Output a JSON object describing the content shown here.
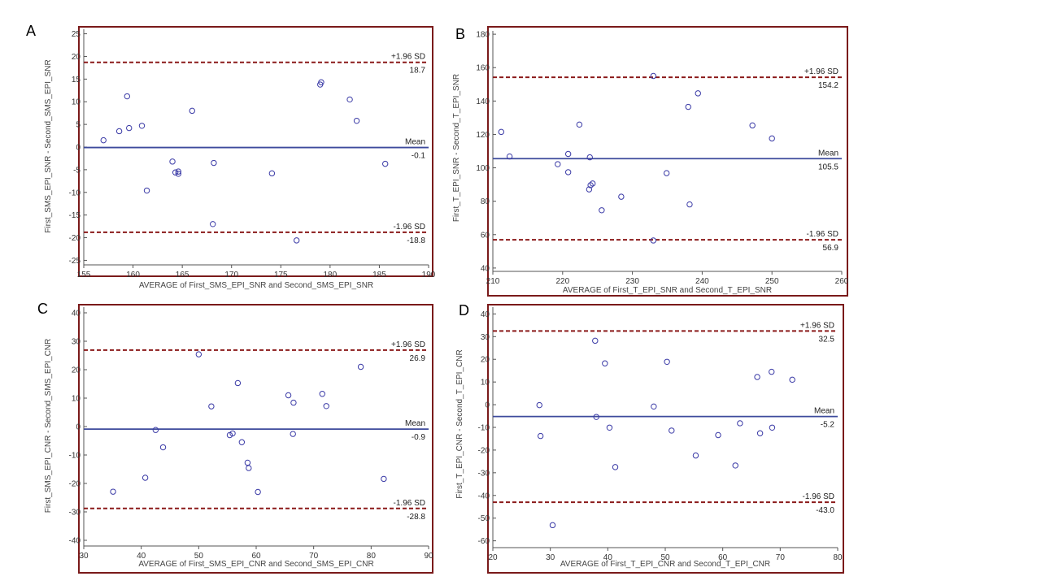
{
  "colors": {
    "frame": "#7a1a1a",
    "mean": "#3d4a9c",
    "limits": "#8b1a1a",
    "points": "#3a3aa6"
  },
  "chart_data": [
    {
      "type": "scatter",
      "panel": "A",
      "xlabel": "AVERAGE of First_SMS_EPI_SNR and Second_SMS_EPI_SNR",
      "ylabel": "First_SMS_EPI_SNR - Second_SMS_EPI_SNR",
      "xlim": [
        155,
        190
      ],
      "ylim": [
        -26,
        26
      ],
      "xticks": [
        155,
        160,
        165,
        170,
        175,
        180,
        185,
        190
      ],
      "yticks": [
        -25,
        -20,
        -15,
        -10,
        -5,
        0,
        5,
        10,
        15,
        20,
        25
      ],
      "lines": [
        {
          "kind": "upper",
          "label": "+1.96 SD",
          "value": 18.7,
          "value_label": "18.7"
        },
        {
          "kind": "mean",
          "label": "Mean",
          "value": -0.1,
          "value_label": "-0.1"
        },
        {
          "kind": "lower",
          "label": "-1.96 SD",
          "value": -18.8,
          "value_label": "-18.8"
        }
      ],
      "points": [
        [
          157,
          1.5
        ],
        [
          158.6,
          3.5
        ],
        [
          159.4,
          11.2
        ],
        [
          159.6,
          4.2
        ],
        [
          160.9,
          4.7
        ],
        [
          161.4,
          -9.6
        ],
        [
          164,
          -3.2
        ],
        [
          164.3,
          -5.6
        ],
        [
          164.6,
          -5.9
        ],
        [
          164.6,
          -5.4
        ],
        [
          166,
          8
        ],
        [
          168.1,
          -17
        ],
        [
          168.2,
          -3.5
        ],
        [
          174.1,
          -5.8
        ],
        [
          176.6,
          -20.6
        ],
        [
          179,
          13.8
        ],
        [
          179.1,
          14.3
        ],
        [
          182,
          10.5
        ],
        [
          182.7,
          5.8
        ],
        [
          185.6,
          -3.7
        ]
      ]
    },
    {
      "type": "scatter",
      "panel": "B",
      "xlabel": "AVERAGE of First_T_EPI_SNR and Second_T_EPI_SNR",
      "ylabel": "First_T_EPI_SNR - Second_T_EPI_SNR",
      "xlim": [
        210,
        260
      ],
      "ylim": [
        38,
        182
      ],
      "xticks": [
        210,
        220,
        230,
        240,
        250,
        260
      ],
      "yticks": [
        40,
        60,
        80,
        100,
        120,
        140,
        160,
        180
      ],
      "lines": [
        {
          "kind": "upper",
          "label": "+1.96 SD",
          "value": 154.2,
          "value_label": "154.2"
        },
        {
          "kind": "mean",
          "label": "Mean",
          "value": 105.5,
          "value_label": "105.5"
        },
        {
          "kind": "lower",
          "label": "-1.96 SD",
          "value": 56.9,
          "value_label": "56.9"
        }
      ],
      "points": [
        [
          211.2,
          121.5
        ],
        [
          212.4,
          106.8
        ],
        [
          219.3,
          102.2
        ],
        [
          220.8,
          108.3
        ],
        [
          220.8,
          97.4
        ],
        [
          222.4,
          125.9
        ],
        [
          223.8,
          87.1
        ],
        [
          223.9,
          106.3
        ],
        [
          224,
          89.6
        ],
        [
          224.3,
          90.6
        ],
        [
          225.6,
          74.6
        ],
        [
          228.4,
          82.7
        ],
        [
          233,
          155
        ],
        [
          233,
          56.5
        ],
        [
          234.9,
          96.8
        ],
        [
          238,
          136.5
        ],
        [
          238.2,
          78.1
        ],
        [
          239.4,
          144.6
        ],
        [
          247.2,
          125.4
        ],
        [
          250,
          117.6
        ]
      ]
    },
    {
      "type": "scatter",
      "panel": "C",
      "xlabel": "AVERAGE of First_SMS_EPI_CNR and Second_SMS_EPI_CNR",
      "ylabel": "First_SMS_EPI_CNR - Second_SMS_EPI_CNR",
      "xlim": [
        30,
        90
      ],
      "ylim": [
        -42,
        42
      ],
      "xticks": [
        30,
        40,
        50,
        60,
        70,
        80,
        90
      ],
      "yticks": [
        -40,
        -30,
        -20,
        -10,
        0,
        10,
        20,
        30,
        40
      ],
      "lines": [
        {
          "kind": "upper",
          "label": "+1.96 SD",
          "value": 26.9,
          "value_label": "26.9"
        },
        {
          "kind": "mean",
          "label": "Mean",
          "value": -0.9,
          "value_label": "-0.9"
        },
        {
          "kind": "lower",
          "label": "-1.96 SD",
          "value": -28.8,
          "value_label": "-28.8"
        }
      ],
      "points": [
        [
          35.1,
          -22.9
        ],
        [
          40.7,
          -18
        ],
        [
          42.5,
          -1.2
        ],
        [
          43.8,
          -7.3
        ],
        [
          50,
          25.4
        ],
        [
          52.2,
          7.1
        ],
        [
          55.4,
          -3
        ],
        [
          55.9,
          -2.4
        ],
        [
          56.8,
          15.3
        ],
        [
          57.5,
          -5.5
        ],
        [
          58.5,
          -12.7
        ],
        [
          58.7,
          -14.6
        ],
        [
          60.3,
          -23
        ],
        [
          65.6,
          11
        ],
        [
          66.4,
          -2.6
        ],
        [
          66.5,
          8.4
        ],
        [
          71.5,
          11.5
        ],
        [
          72.2,
          7.2
        ],
        [
          78.2,
          21
        ],
        [
          82.2,
          -18.4
        ]
      ]
    },
    {
      "type": "scatter",
      "panel": "D",
      "xlabel": "AVERAGE of First_T_EPI_CNR and Second_T_EPI_CNR",
      "ylabel": "First_T_EPI_CNR - Second_T_EPI_CNR",
      "xlim": [
        20,
        80
      ],
      "ylim": [
        -63,
        43
      ],
      "xticks": [
        20,
        30,
        40,
        50,
        60,
        70,
        80
      ],
      "yticks": [
        -60,
        -50,
        -40,
        -30,
        -20,
        -10,
        0,
        10,
        20,
        30,
        40
      ],
      "lines": [
        {
          "kind": "upper",
          "label": "+1.96 SD",
          "value": 32.5,
          "value_label": "32.5"
        },
        {
          "kind": "mean",
          "label": "Mean",
          "value": -5.2,
          "value_label": "-5.2"
        },
        {
          "kind": "lower",
          "label": "-1.96 SD",
          "value": -43,
          "value_label": "-43.0"
        }
      ],
      "points": [
        [
          28.1,
          -0.2
        ],
        [
          28.3,
          -13.8
        ],
        [
          30.4,
          -53.1
        ],
        [
          37.8,
          28.2
        ],
        [
          38,
          -5.4
        ],
        [
          39.5,
          18.2
        ],
        [
          40.3,
          -10.1
        ],
        [
          41.3,
          -27.5
        ],
        [
          48,
          -0.8
        ],
        [
          50.3,
          18.9
        ],
        [
          51.1,
          -11.4
        ],
        [
          55.3,
          -22.4
        ],
        [
          59.2,
          -13.4
        ],
        [
          62.2,
          -26.8
        ],
        [
          63,
          -8.2
        ],
        [
          66,
          12.2
        ],
        [
          66.5,
          -12.6
        ],
        [
          68.5,
          14.5
        ],
        [
          68.6,
          -10.1
        ],
        [
          72.1,
          11
        ]
      ]
    }
  ]
}
